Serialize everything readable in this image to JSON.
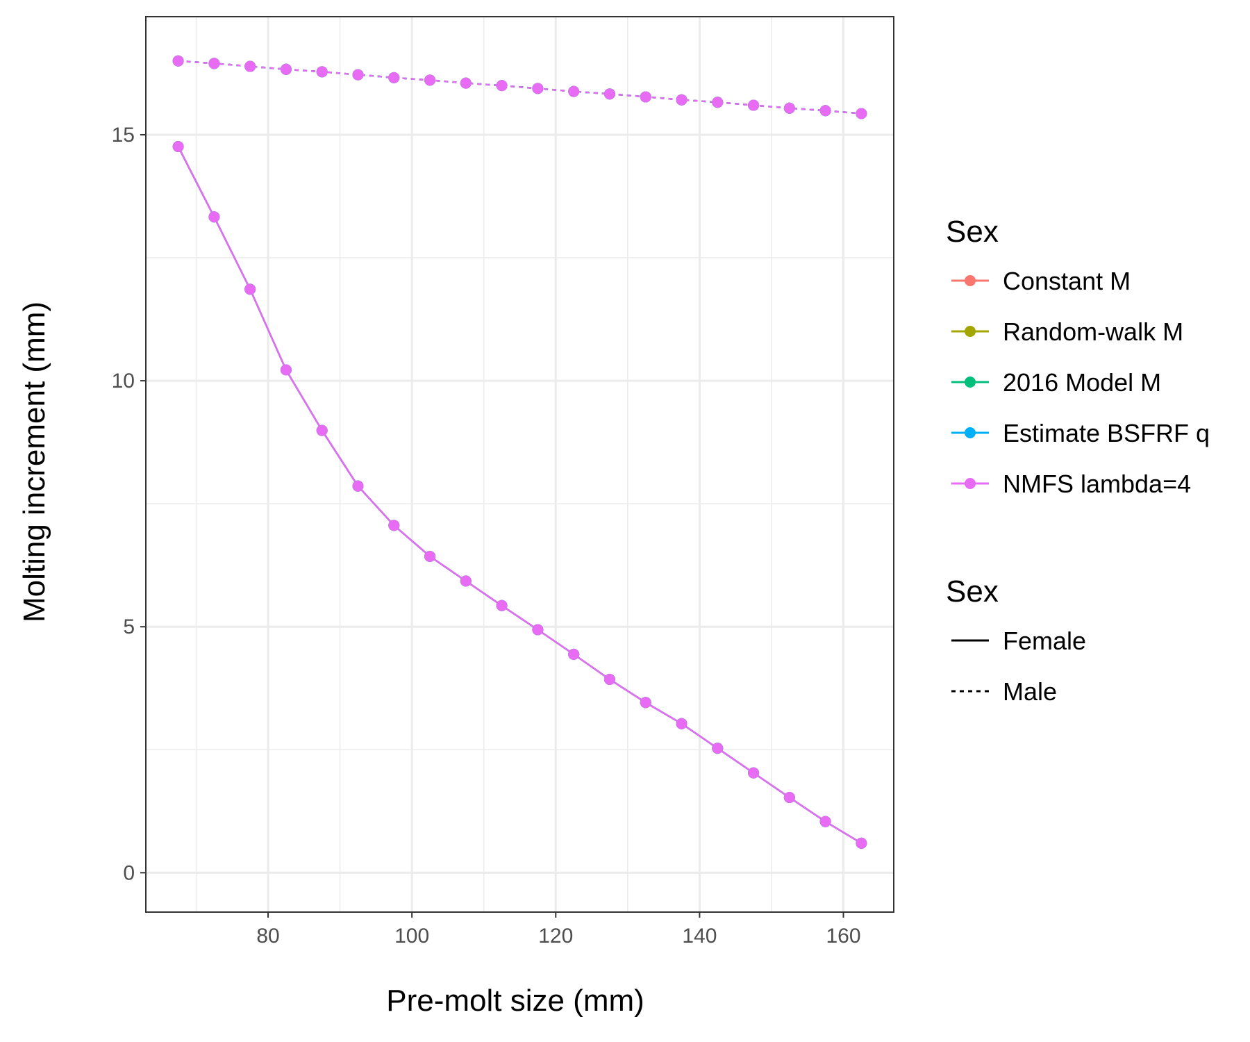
{
  "chart_data": {
    "type": "line",
    "xlabel": "Pre-molt size (mm)",
    "ylabel": "Molting increment (mm)",
    "xlim": [
      63,
      167
    ],
    "ylim": [
      -0.8,
      17.4
    ],
    "x_ticks": [
      80,
      100,
      120,
      140,
      160
    ],
    "y_ticks": [
      0,
      5,
      10,
      15
    ],
    "x_minor_ticks": [
      70,
      90,
      110,
      130,
      150
    ],
    "y_minor_ticks": [
      2.5,
      7.5,
      12.5
    ],
    "grid": true,
    "x": [
      67.5,
      72.5,
      77.5,
      82.5,
      87.5,
      92.5,
      97.5,
      102.5,
      107.5,
      112.5,
      117.5,
      122.5,
      127.5,
      132.5,
      137.5,
      142.5,
      147.5,
      152.5,
      157.5,
      162.5
    ],
    "series": [
      {
        "name": "Constant M",
        "color": "#F8766D",
        "sex": "Female",
        "values": [
          14.76,
          13.33,
          11.86,
          10.22,
          8.99,
          7.86,
          7.06,
          6.43,
          5.93,
          5.43,
          4.94,
          4.44,
          3.93,
          3.46,
          3.03,
          2.53,
          2.03,
          1.53,
          1.04,
          0.6
        ]
      },
      {
        "name": "Random-walk M",
        "color": "#A3A500",
        "sex": "Female",
        "values": [
          14.76,
          13.33,
          11.86,
          10.22,
          8.99,
          7.86,
          7.06,
          6.43,
          5.93,
          5.43,
          4.94,
          4.44,
          3.93,
          3.46,
          3.03,
          2.53,
          2.03,
          1.53,
          1.04,
          0.6
        ]
      },
      {
        "name": "2016 Model M",
        "color": "#00BF7D",
        "sex": "Female",
        "values": [
          14.76,
          13.33,
          11.86,
          10.22,
          8.99,
          7.86,
          7.06,
          6.43,
          5.93,
          5.43,
          4.94,
          4.44,
          3.93,
          3.46,
          3.03,
          2.53,
          2.03,
          1.53,
          1.04,
          0.6
        ]
      },
      {
        "name": "Estimate BSFRF q",
        "color": "#00B0F6",
        "sex": "Female",
        "values": [
          14.76,
          13.33,
          11.86,
          10.22,
          8.99,
          7.86,
          7.06,
          6.43,
          5.93,
          5.43,
          4.94,
          4.44,
          3.93,
          3.46,
          3.03,
          2.53,
          2.03,
          1.53,
          1.04,
          0.6
        ]
      },
      {
        "name": "NMFS lambda=4",
        "color": "#E76BF3",
        "sex": "Female",
        "values": [
          14.76,
          13.33,
          11.86,
          10.22,
          8.99,
          7.86,
          7.06,
          6.43,
          5.93,
          5.43,
          4.94,
          4.44,
          3.93,
          3.46,
          3.03,
          2.53,
          2.03,
          1.53,
          1.04,
          0.6
        ]
      },
      {
        "name": "Constant M",
        "color": "#F8766D",
        "sex": "Male",
        "values": [
          16.5,
          16.45,
          16.39,
          16.33,
          16.28,
          16.22,
          16.16,
          16.11,
          16.05,
          16.0,
          15.94,
          15.88,
          15.83,
          15.77,
          15.71,
          15.66,
          15.6,
          15.54,
          15.49,
          15.43
        ]
      },
      {
        "name": "Random-walk M",
        "color": "#A3A500",
        "sex": "Male",
        "values": [
          16.5,
          16.45,
          16.39,
          16.33,
          16.28,
          16.22,
          16.16,
          16.11,
          16.05,
          16.0,
          15.94,
          15.88,
          15.83,
          15.77,
          15.71,
          15.66,
          15.6,
          15.54,
          15.49,
          15.43
        ]
      },
      {
        "name": "2016 Model M",
        "color": "#00BF7D",
        "sex": "Male",
        "values": [
          16.5,
          16.45,
          16.39,
          16.33,
          16.28,
          16.22,
          16.16,
          16.11,
          16.05,
          16.0,
          15.94,
          15.88,
          15.83,
          15.77,
          15.71,
          15.66,
          15.6,
          15.54,
          15.49,
          15.43
        ]
      },
      {
        "name": "Estimate BSFRF q",
        "color": "#00B0F6",
        "sex": "Male",
        "values": [
          16.5,
          16.45,
          16.39,
          16.33,
          16.28,
          16.22,
          16.16,
          16.11,
          16.05,
          16.0,
          15.94,
          15.88,
          15.83,
          15.77,
          15.71,
          15.66,
          15.6,
          15.54,
          15.49,
          15.43
        ]
      },
      {
        "name": "NMFS lambda=4",
        "color": "#E76BF3",
        "sex": "Male",
        "values": [
          16.5,
          16.45,
          16.39,
          16.33,
          16.28,
          16.22,
          16.16,
          16.11,
          16.05,
          16.0,
          15.94,
          15.88,
          15.83,
          15.77,
          15.71,
          15.66,
          15.6,
          15.54,
          15.49,
          15.43
        ]
      }
    ],
    "legends": [
      {
        "title": "Sex",
        "kind": "color",
        "entries": [
          {
            "label": "Constant M",
            "color": "#F8766D"
          },
          {
            "label": "Random-walk M",
            "color": "#A3A500"
          },
          {
            "label": "2016 Model M",
            "color": "#00BF7D"
          },
          {
            "label": "Estimate BSFRF q",
            "color": "#00B0F6"
          },
          {
            "label": "NMFS lambda=4",
            "color": "#E76BF3"
          }
        ]
      },
      {
        "title": "Sex",
        "kind": "linetype",
        "entries": [
          {
            "label": "Female",
            "linetype": "solid"
          },
          {
            "label": "Male",
            "linetype": "dashed"
          }
        ]
      }
    ],
    "legend_position": "right"
  }
}
